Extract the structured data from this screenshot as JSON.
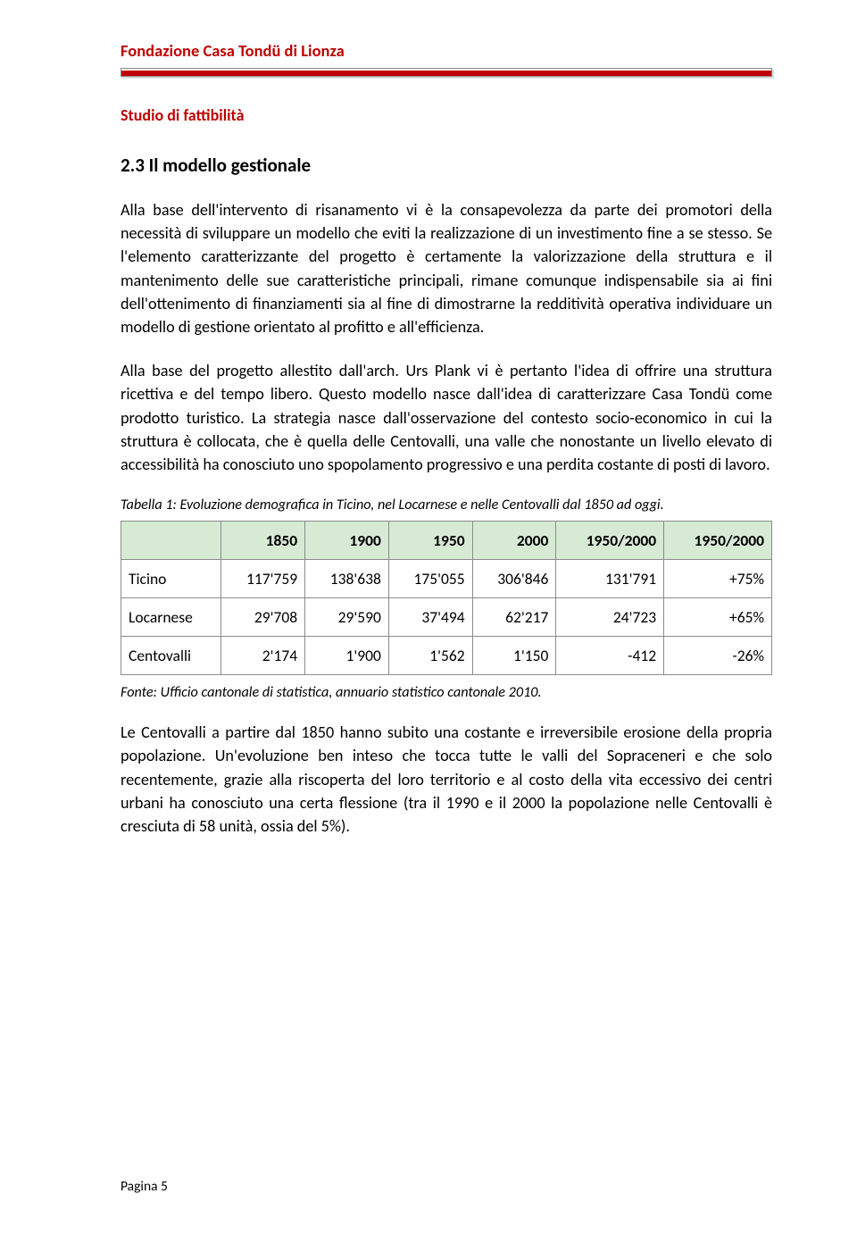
{
  "header": {
    "org": "Fondazione Casa Tondü di Lionza",
    "subtitle": "Studio di fattibilità"
  },
  "section": {
    "number_title": "2.3   Il modello gestionale"
  },
  "paragraphs": {
    "p1": "Alla base dell'intervento di risanamento vi è la consapevolezza da parte dei promotori della necessità di sviluppare un modello che eviti la realizzazione di un investimento fine a se stesso. Se l'elemento caratterizzante del progetto è certamente la valorizzazione della struttura e il mantenimento delle sue caratteristiche principali, rimane comunque indispensabile sia ai fini dell'ottenimento di finanziamenti sia al fine di dimostrarne la redditività operativa individuare un modello di gestione orientato al profitto e all'efficienza.",
    "p2": "Alla base del progetto allestito dall'arch. Urs Plank vi è pertanto l'idea di offrire una struttura ricettiva e del tempo libero. Questo modello nasce dall'idea di caratterizzare Casa Tondü come prodotto turistico. La strategia nasce dall'osservazione del contesto socio-economico in cui la struttura è collocata, che è quella delle Centovalli, una valle che nonostante un livello elevato di accessibilità ha conosciuto uno spopolamento progressivo e una perdita costante di posti di lavoro.",
    "p3": "Le Centovalli a partire dal 1850 hanno subito una costante e irreversibile erosione della propria popolazione. Un'evoluzione ben inteso che tocca tutte le valli del Sopraceneri e che solo recentemente, grazie alla riscoperta del loro territorio e al costo della vita eccessivo dei centri urbani ha conosciuto una certa flessione (tra il 1990 e il 2000 la popolazione nelle Centovalli è cresciuta di 58 unità, ossia del 5%)."
  },
  "table": {
    "caption": "Tabella 1: Evoluzione demografica in Ticino, nel Locarnese e nelle Centovalli dal 1850 ad oggi.",
    "columns": [
      "",
      "1850",
      "1900",
      "1950",
      "2000",
      "1950/2000",
      "1950/2000"
    ],
    "rows": [
      {
        "label": "Ticino",
        "cells": [
          "117'759",
          "138'638",
          "175'055",
          "306'846",
          "131'791",
          "+75%"
        ]
      },
      {
        "label": "Locarnese",
        "cells": [
          "29'708",
          "29'590",
          "37'494",
          "62'217",
          "24'723",
          "+65%"
        ]
      },
      {
        "label": "Centovalli",
        "cells": [
          "2'174",
          "1'900",
          "1'562",
          "1'150",
          "-412",
          "-26%"
        ]
      }
    ],
    "source": "Fonte: Ufficio cantonale di statistica, annuario statistico cantonale 2010.",
    "header_bg": "#d6ead4",
    "border_color": "#8b8b8b"
  },
  "colors": {
    "brand_red": "#c00000",
    "text_black": "#000000",
    "page_bg": "#ffffff"
  },
  "footer": {
    "page": "Pagina 5"
  }
}
